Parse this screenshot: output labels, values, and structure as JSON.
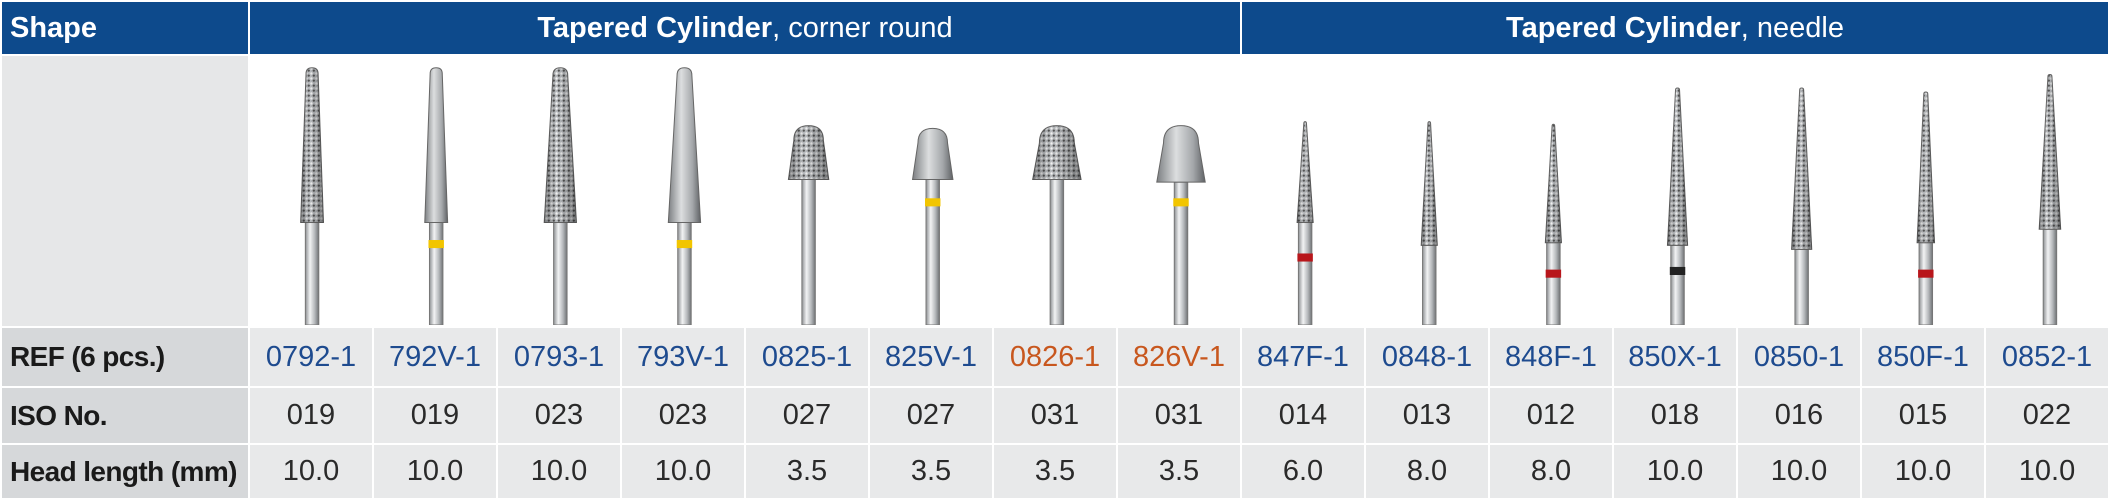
{
  "table": {
    "shape_label": "Shape",
    "row_labels": {
      "ref": "REF (6 pcs.)",
      "iso": "ISO No.",
      "length": "Head length (mm)"
    },
    "groups": [
      {
        "name": "Tapered Cylinder",
        "detail": ", corner round",
        "products": [
          {
            "ref": "0792-1",
            "iso": "019",
            "length": "10.0",
            "color": "#1e4b8f"
          },
          {
            "ref": "792V-1",
            "iso": "019",
            "length": "10.0",
            "color": "#1e4b8f"
          },
          {
            "ref": "0793-1",
            "iso": "023",
            "length": "10.0",
            "color": "#1e4b8f"
          },
          {
            "ref": "793V-1",
            "iso": "023",
            "length": "10.0",
            "color": "#1e4b8f"
          },
          {
            "ref": "0825-1",
            "iso": "027",
            "length": "3.5",
            "color": "#1e4b8f"
          },
          {
            "ref": "825V-1",
            "iso": "027",
            "length": "3.5",
            "color": "#1e4b8f"
          },
          {
            "ref": "0826-1",
            "iso": "031",
            "length": "3.5",
            "color": "#c8571e"
          },
          {
            "ref": "826V-1",
            "iso": "031",
            "length": "3.5",
            "color": "#c8571e"
          }
        ]
      },
      {
        "name": "Tapered Cylinder",
        "detail": ", needle",
        "products": [
          {
            "ref": "847F-1",
            "iso": "014",
            "length": "6.0",
            "color": "#1e4b8f"
          },
          {
            "ref": "0848-1",
            "iso": "013",
            "length": "8.0",
            "color": "#1e4b8f"
          },
          {
            "ref": "848F-1",
            "iso": "012",
            "length": "8.0",
            "color": "#1e4b8f"
          },
          {
            "ref": "850X-1",
            "iso": "018",
            "length": "10.0",
            "color": "#1e4b8f"
          },
          {
            "ref": "0850-1",
            "iso": "016",
            "length": "10.0",
            "color": "#1e4b8f"
          },
          {
            "ref": "850F-1",
            "iso": "015",
            "length": "10.0",
            "color": "#1e4b8f"
          },
          {
            "ref": "0852-1",
            "iso": "022",
            "length": "10.0",
            "color": "#1e4b8f"
          }
        ]
      }
    ]
  }
}
